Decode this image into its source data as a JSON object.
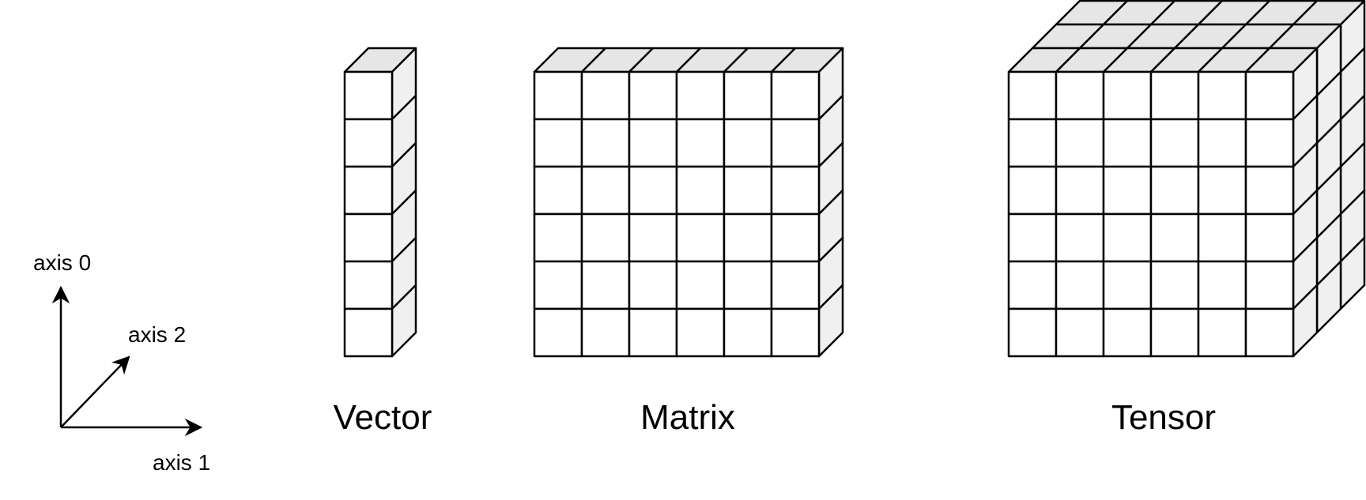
{
  "colors": {
    "stroke": "#000000",
    "face_front": "#ffffff",
    "face_side": "#f0f0f0",
    "face_top": "#e6e6e6",
    "background": "#ffffff"
  },
  "axes": {
    "axis0_label": "axis 0",
    "axis1_label": "axis 1",
    "axis2_label": "axis 2"
  },
  "objects": [
    {
      "label": "Vector",
      "rows": 6,
      "cols": 1,
      "depth": 1
    },
    {
      "label": "Matrix",
      "rows": 6,
      "cols": 6,
      "depth": 1
    },
    {
      "label": "Tensor",
      "rows": 6,
      "cols": 6,
      "depth": 3
    }
  ]
}
